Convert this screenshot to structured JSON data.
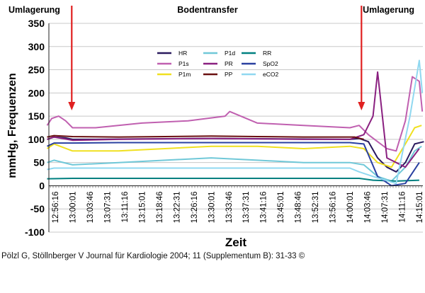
{
  "chart_data": {
    "type": "line",
    "xlabel": "Zeit",
    "ylabel": "mmHg, Frequenzen",
    "ylim": [
      -100,
      350
    ],
    "yticks": [
      -100,
      -50,
      0,
      50,
      100,
      150,
      200,
      250,
      300,
      350
    ],
    "xticks": [
      "12:56:16",
      "13:00:01",
      "13:03:46",
      "13:07:31",
      "13:11:16",
      "13:15:01",
      "13:18:46",
      "13:22:31",
      "13:26:16",
      "13:30:01",
      "13:33:46",
      "13:37:31",
      "13:41:16",
      "13:45:01",
      "13:48:46",
      "13:52:31",
      "13:56:16",
      "14:00:01",
      "14:03:46",
      "14:07:31",
      "14:11:16",
      "14:15:01"
    ],
    "grid": "horizontal",
    "legend_position": "top-center",
    "annotations": [
      "Umlagerung",
      "Bodentransfer",
      "Umlagerung"
    ],
    "event_markers": [
      "12:59:50",
      "14:02:30"
    ],
    "series": [
      {
        "name": "HR",
        "color": "#2a1a5e",
        "x": [
          "12:54:30",
          "12:56:00",
          "12:58:30",
          "13:00:00",
          "13:05:00",
          "13:15:00",
          "13:30:00",
          "13:45:00",
          "14:00:00",
          "14:02:00",
          "14:04:00",
          "14:06:00",
          "14:08:00",
          "14:10:00",
          "14:12:00",
          "14:14:00",
          "14:16:00"
        ],
        "values": [
          100,
          105,
          103,
          100,
          100,
          101,
          102,
          101,
          100,
          102,
          95,
          60,
          40,
          30,
          50,
          90,
          95
        ]
      },
      {
        "name": "P1s",
        "color": "#c060b0",
        "x": [
          "12:54:30",
          "12:55:30",
          "12:57:00",
          "12:58:30",
          "13:00:00",
          "13:05:00",
          "13:15:00",
          "13:25:00",
          "13:33:00",
          "13:34:00",
          "13:40:00",
          "13:50:00",
          "14:00:00",
          "14:02:00",
          "14:04:00",
          "14:06:00",
          "14:08:00",
          "14:10:00",
          "14:12:00",
          "14:13:30",
          "14:15:00",
          "14:15:40"
        ],
        "values": [
          130,
          145,
          150,
          140,
          125,
          125,
          135,
          140,
          150,
          160,
          135,
          130,
          125,
          130,
          110,
          95,
          80,
          75,
          140,
          235,
          225,
          160
        ]
      },
      {
        "name": "P1m",
        "color": "#f0e020",
        "x": [
          "12:54:30",
          "12:56:00",
          "13:00:00",
          "13:10:00",
          "13:20:00",
          "13:30:00",
          "13:40:00",
          "13:50:00",
          "14:00:00",
          "14:03:00",
          "14:06:00",
          "14:09:00",
          "14:12:00",
          "14:14:00",
          "14:15:30"
        ],
        "values": [
          80,
          90,
          75,
          75,
          80,
          85,
          85,
          80,
          85,
          80,
          50,
          40,
          90,
          125,
          130
        ]
      },
      {
        "name": "P1d",
        "color": "#70c8d8",
        "x": [
          "12:54:30",
          "12:56:00",
          "13:00:00",
          "13:10:00",
          "13:20:00",
          "13:30:00",
          "13:40:00",
          "13:50:00",
          "14:00:00",
          "14:03:00",
          "14:06:00",
          "14:09:00",
          "14:12:00",
          "14:14:00",
          "14:15:30"
        ],
        "values": [
          50,
          55,
          45,
          50,
          55,
          60,
          55,
          50,
          50,
          45,
          20,
          10,
          40,
          75,
          85
        ]
      },
      {
        "name": "PR",
        "color": "#8a2080",
        "x": [
          "12:54:30",
          "12:56:00",
          "13:00:00",
          "13:10:00",
          "13:20:00",
          "13:30:00",
          "13:40:00",
          "13:50:00",
          "14:00:00",
          "14:03:00",
          "14:05:00",
          "14:06:00",
          "14:08:00",
          "14:10:00",
          "14:12:00",
          "14:15:00"
        ],
        "values": [
          100,
          105,
          98,
          100,
          101,
          102,
          101,
          100,
          100,
          110,
          150,
          245,
          60,
          50,
          40,
          80
        ]
      },
      {
        "name": "PP",
        "color": "#6a1010",
        "x": [
          "12:54:30",
          "12:56:00",
          "13:00:00",
          "13:10:00",
          "13:20:00",
          "13:30:00",
          "13:40:00",
          "13:50:00",
          "14:01:00",
          "14:03:00"
        ],
        "values": [
          105,
          108,
          106,
          105,
          106,
          107,
          106,
          105,
          105,
          100
        ]
      },
      {
        "name": "RR",
        "color": "#008080",
        "x": [
          "12:54:30",
          "13:00:00",
          "13:30:00",
          "14:00:00",
          "14:02:00",
          "14:05:00",
          "14:10:00",
          "14:15:00"
        ],
        "values": [
          15,
          16,
          16,
          16,
          16,
          12,
          10,
          12
        ]
      },
      {
        "name": "SpO2",
        "color": "#2a40a0",
        "x": [
          "12:54:30",
          "12:56:00",
          "13:00:00",
          "13:10:00",
          "13:20:00",
          "13:30:00",
          "13:40:00",
          "13:50:00",
          "14:00:00",
          "14:03:00",
          "14:06:00",
          "14:09:00",
          "14:12:00",
          "14:15:00"
        ],
        "values": [
          85,
          92,
          92,
          93,
          93,
          93,
          93,
          93,
          93,
          90,
          20,
          0,
          5,
          50
        ]
      },
      {
        "name": "eCO2",
        "color": "#90d8f0",
        "x": [
          "12:54:30",
          "12:56:00",
          "13:00:00",
          "13:10:00",
          "13:20:00",
          "13:30:00",
          "13:40:00",
          "13:50:00",
          "14:00:00",
          "14:02:00",
          "14:05:00",
          "14:10:00",
          "14:13:00",
          "14:15:00",
          "14:15:40"
        ],
        "values": [
          35,
          38,
          38,
          38,
          38,
          38,
          38,
          38,
          38,
          30,
          20,
          5,
          150,
          270,
          200
        ]
      }
    ]
  },
  "citation": "Pölzl G, Stöllnberger V Journal für Kardiologie 2004; 11 (Supplementum B): 31-33 ©"
}
